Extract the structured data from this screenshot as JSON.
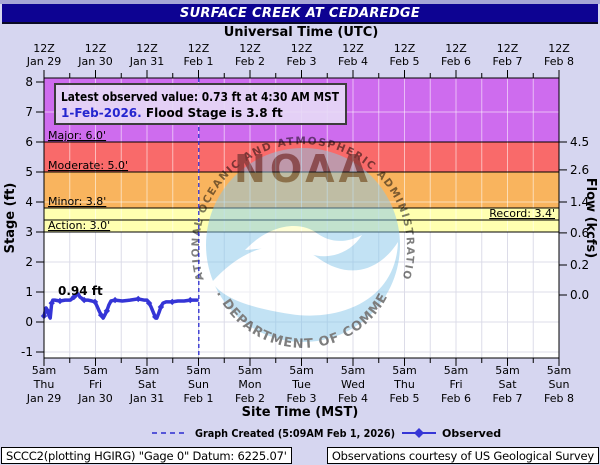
{
  "page": {
    "title": "SURFACE CREEK AT CEDAREDGE"
  },
  "info_box": {
    "line1": "Latest observed value: 0.73 ft at 4:30 AM MST",
    "date": "1-Feb-2026.",
    "flood_text": " Flood Stage is 3.8 ft"
  },
  "watermark": {
    "ring_text": "NATIONAL OCEANIC AND ATMOSPHERIC ADMINISTRATION",
    "center_text": "NOAA",
    "bottom_text": "U.S. DEPARTMENT OF COMMERCE"
  },
  "legend": {
    "created_label": "Graph Created (5:09AM Feb 1, 2026)",
    "observed_label": "Observed"
  },
  "status_bar": {
    "left": "SCCC2(plotting HGIRG) \"Gage 0\" Datum: 6225.07'",
    "right": "Observations courtesy of US Geological Survey"
  },
  "chart_data": {
    "type": "line",
    "title": "SURFACE CREEK AT CEDAREDGE",
    "x_top_axis": {
      "label": "Universal Time (UTC)",
      "tick": "12Z",
      "dates": [
        "Jan 29",
        "Jan 30",
        "Jan 31",
        "Feb 1",
        "Feb 2",
        "Feb 3",
        "Feb 4",
        "Feb 5",
        "Feb 6",
        "Feb 7",
        "Feb 8"
      ]
    },
    "x_bottom_axis": {
      "label": "Site Time (MST)",
      "tick": "5am",
      "days": [
        "Thu",
        "Fri",
        "Sat",
        "Sun",
        "Mon",
        "Tue",
        "Wed",
        "Thu",
        "Fri",
        "Sat",
        "Sun"
      ],
      "dates": [
        "Jan 29",
        "Jan 30",
        "Jan 31",
        "Feb 1",
        "Feb 2",
        "Feb 3",
        "Feb 4",
        "Feb 5",
        "Feb 6",
        "Feb 7",
        "Feb 8"
      ]
    },
    "y_left": {
      "label": "Stage (ft)",
      "ticks": [
        8,
        7,
        6,
        5,
        4,
        3,
        2,
        1,
        0,
        -1
      ],
      "range": [
        -1.2,
        8.1
      ]
    },
    "y_right": {
      "label": "Flow (kcfs)",
      "ticks": [
        {
          "label": "4.5",
          "stage": 6.0
        },
        {
          "label": "2.6",
          "stage": 5.07
        },
        {
          "label": "1.4",
          "stage": 4.0
        },
        {
          "label": "0.6",
          "stage": 2.97
        },
        {
          "label": "0.2",
          "stage": 1.9
        },
        {
          "label": "0.0",
          "stage": 0.9
        }
      ]
    },
    "flood_categories": [
      {
        "name": "Major",
        "label": "Major: 6.0'",
        "stage": 6.0,
        "band": [
          6.0,
          null
        ],
        "color": "#ce6cee"
      },
      {
        "name": "Moderate",
        "label": "Moderate: 5.0'",
        "stage": 5.0,
        "band": [
          5.0,
          6.0
        ],
        "color": "#f96a6a"
      },
      {
        "name": "Minor",
        "label": "Minor: 3.8'",
        "stage": 3.8,
        "band": [
          3.8,
          5.0
        ],
        "color": "#f9b45e"
      },
      {
        "name": "Action",
        "label": "Action: 3.0'",
        "stage": 3.0,
        "band": [
          3.0,
          3.8
        ],
        "color": "#ffffb0"
      }
    ],
    "record": {
      "label": "Record: 3.4'",
      "stage": 3.4
    },
    "annotation": {
      "label": "0.94 ft"
    },
    "created_time_days": 3.006,
    "series": [
      {
        "name": "Observed",
        "color": "#3535d6",
        "points": [
          [
            0.0,
            0.2
          ],
          [
            0.02,
            0.33
          ],
          [
            0.04,
            0.47
          ],
          [
            0.07,
            0.37
          ],
          [
            0.1,
            0.2
          ],
          [
            0.12,
            0.13
          ],
          [
            0.15,
            0.63
          ],
          [
            0.17,
            0.73
          ],
          [
            0.21,
            0.73
          ],
          [
            0.31,
            0.7
          ],
          [
            0.41,
            0.73
          ],
          [
            0.51,
            0.73
          ],
          [
            0.58,
            0.83
          ],
          [
            0.66,
            0.94
          ],
          [
            0.7,
            0.83
          ],
          [
            0.78,
            0.73
          ],
          [
            0.85,
            0.73
          ],
          [
            0.93,
            0.7
          ],
          [
            0.99,
            0.67
          ],
          [
            1.03,
            0.53
          ],
          [
            1.07,
            0.37
          ],
          [
            1.11,
            0.23
          ],
          [
            1.15,
            0.13
          ],
          [
            1.18,
            0.23
          ],
          [
            1.22,
            0.37
          ],
          [
            1.26,
            0.57
          ],
          [
            1.3,
            0.7
          ],
          [
            1.38,
            0.73
          ],
          [
            1.52,
            0.7
          ],
          [
            1.67,
            0.73
          ],
          [
            1.83,
            0.77
          ],
          [
            1.94,
            0.73
          ],
          [
            2.0,
            0.73
          ],
          [
            2.04,
            0.63
          ],
          [
            2.08,
            0.5
          ],
          [
            2.12,
            0.33
          ],
          [
            2.16,
            0.17
          ],
          [
            2.19,
            0.13
          ],
          [
            2.23,
            0.3
          ],
          [
            2.27,
            0.5
          ],
          [
            2.31,
            0.63
          ],
          [
            2.37,
            0.67
          ],
          [
            2.49,
            0.67
          ],
          [
            2.6,
            0.7
          ],
          [
            2.72,
            0.7
          ],
          [
            2.84,
            0.73
          ],
          [
            2.91,
            0.73
          ],
          [
            2.97,
            0.73
          ]
        ]
      }
    ]
  }
}
